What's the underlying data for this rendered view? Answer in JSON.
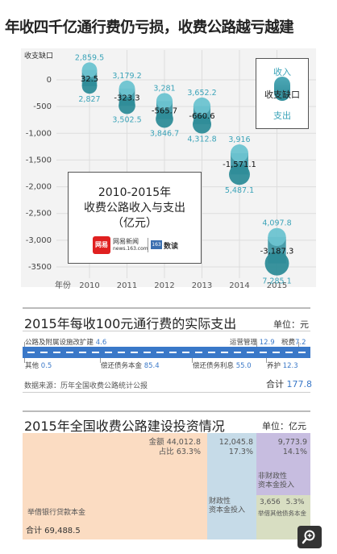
{
  "title": "年收四千亿通行费仍亏损，收费公路越亏越建",
  "chart_data": {
    "type": "scatter",
    "title": "",
    "ylabel": "收支缺口",
    "xlabel": "年份",
    "x": [
      "2010",
      "2011",
      "2012",
      "2013",
      "2014",
      "2015"
    ],
    "yticks": [
      "0",
      "-500",
      "-1,000",
      "-1,500",
      "-2,000",
      "-2,500",
      "-3,000",
      "-3500"
    ],
    "ylim": [
      -3500,
      0
    ],
    "series": [
      {
        "name": "收入",
        "values": [
          2859.5,
          3179.2,
          3281.0,
          3652.2,
          3916.0,
          4097.8
        ],
        "labels": [
          "2,859.5",
          "3,179.2",
          "3,281",
          "3,652.2",
          "3,916",
          "4,097.8"
        ]
      },
      {
        "name": "支出",
        "values": [
          2827.0,
          3502.5,
          3846.7,
          4312.8,
          5487.1,
          7285.1
        ],
        "labels": [
          "2,827",
          "3,502.5",
          "3,846.7",
          "4,312.8",
          "5,487.1",
          "7,285.1"
        ]
      },
      {
        "name": "收支缺口",
        "values": [
          32.5,
          -323.3,
          -565.7,
          -660.6,
          -1571.1,
          -3187.3
        ],
        "labels": [
          "32.5",
          "-323.3",
          "-565.7",
          "-660.6",
          "-1,571.1",
          "-3,187.3"
        ]
      }
    ],
    "info_lines": [
      "2010-2015年",
      "收费公路收入与支出",
      "（亿元）"
    ],
    "legend": [
      "收入",
      "收支缺口",
      "支出"
    ],
    "colors": {
      "income": "#6cc3d0",
      "expense": "#2e8c98",
      "gap": "#3d8f9b"
    }
  },
  "logos": {
    "netease_mark": "网易",
    "netease_text1": "网易新闻",
    "netease_text2": "news.163.com",
    "shudu": "数读"
  },
  "section2": {
    "title": "2015年每收100元通行费的实际支出",
    "unit": "单位：元",
    "top_items": [
      {
        "label": "公路及附属设施改扩建",
        "value": "4.6"
      },
      {
        "label": "运营管理",
        "value": "12.9"
      },
      {
        "label": "税费",
        "value": "7.2"
      }
    ],
    "bottom_items": [
      {
        "label": "其他",
        "value": "0.5"
      },
      {
        "label": "偿还债务本金",
        "value": "85.4"
      },
      {
        "label": "偿还债务利息",
        "value": "55.0"
      },
      {
        "label": "养护",
        "value": "12.3"
      }
    ],
    "source": "数据来源：历年全国收费公路统计公报",
    "total_label": "合计",
    "total_value": "177.8"
  },
  "section3": {
    "title": "2015年全国收费公路建设投资情况",
    "unit": "单位：亿元",
    "bank_amount": "金额 44,012.8",
    "bank_share": "占比 63.3%",
    "bank_label": "举借银行贷款本金",
    "fiscal_amount": "12,045.8",
    "fiscal_share": "17.3%",
    "fiscal_label1": "财政性",
    "fiscal_label2": "资本金投入",
    "nonfiscal_amount": "9,773.9",
    "nonfiscal_share": "14.1%",
    "nonfiscal_label1": "非财政性",
    "nonfiscal_label2": "资本金投入",
    "other_amount": "3,656",
    "other_share": "5.3%",
    "other_label": "举借其他债务本金",
    "total": "合计 69,488.5",
    "colors": {
      "bank": "#fbdcc2",
      "fiscal": "#c6dbe8",
      "nonfiscal": "#c7bde0",
      "other": "#d8dec2"
    }
  }
}
